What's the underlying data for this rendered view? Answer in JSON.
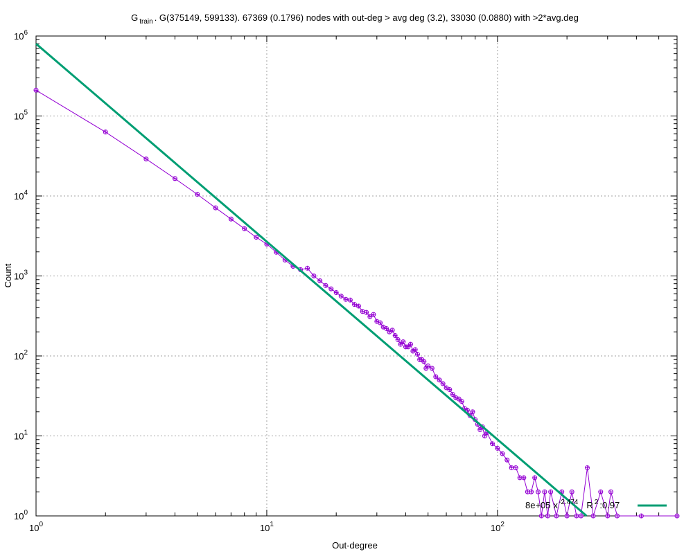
{
  "chart_data": {
    "type": "scatter",
    "title": {
      "prefix": "G",
      "subscript": "train",
      "rest": ". G(375149, 599133). 67369 (0.1796) nodes with out-deg > avg deg (3.2), 33030 (0.0880) with >2*avg.deg"
    },
    "xlabel": "Out-degree",
    "ylabel": "Count",
    "x_scale": "log",
    "y_scale": "log",
    "xlim": [
      1,
      600
    ],
    "ylim": [
      1,
      1000000
    ],
    "grid": true,
    "legend_position": "bottom-right",
    "x_ticks": [
      {
        "base": "10",
        "exp": "0",
        "value": 1
      },
      {
        "base": "10",
        "exp": "1",
        "value": 10
      },
      {
        "base": "10",
        "exp": "2",
        "value": 100
      }
    ],
    "y_ticks": [
      {
        "base": "10",
        "exp": "0",
        "value": 1
      },
      {
        "base": "10",
        "exp": "1",
        "value": 10
      },
      {
        "base": "10",
        "exp": "2",
        "value": 100
      },
      {
        "base": "10",
        "exp": "3",
        "value": 1000
      },
      {
        "base": "10",
        "exp": "4",
        "value": 10000
      },
      {
        "base": "10",
        "exp": "5",
        "value": 100000
      },
      {
        "base": "10",
        "exp": "6",
        "value": 1000000
      }
    ],
    "colors": {
      "data": "#9400d3",
      "fit": "#009e73",
      "grid": "#a0a0a0"
    },
    "series": [
      {
        "style": "line-points",
        "points": [
          [
            1,
            210000
          ],
          [
            2,
            63000
          ],
          [
            3,
            29000
          ],
          [
            4,
            16500
          ],
          [
            5,
            10500
          ],
          [
            6,
            7100
          ],
          [
            7,
            5150
          ],
          [
            8,
            3900
          ],
          [
            9,
            3050
          ],
          [
            10,
            2500
          ],
          [
            11,
            1980
          ],
          [
            12,
            1580
          ],
          [
            13,
            1320
          ],
          [
            14,
            1200
          ],
          [
            15,
            1250
          ],
          [
            16,
            1000
          ],
          [
            17,
            870
          ],
          [
            18,
            760
          ],
          [
            19,
            690
          ],
          [
            20,
            620
          ],
          [
            21,
            560
          ],
          [
            22,
            510
          ],
          [
            23,
            500
          ],
          [
            24,
            440
          ],
          [
            25,
            420
          ],
          [
            26,
            360
          ],
          [
            27,
            350
          ],
          [
            28,
            310
          ],
          [
            29,
            330
          ],
          [
            30,
            270
          ],
          [
            31,
            260
          ],
          [
            32,
            230
          ],
          [
            33,
            220
          ],
          [
            34,
            200
          ],
          [
            35,
            210
          ],
          [
            36,
            180
          ],
          [
            37,
            160
          ],
          [
            38,
            140
          ],
          [
            39,
            150
          ],
          [
            40,
            130
          ],
          [
            41,
            130
          ],
          [
            42,
            140
          ],
          [
            43,
            115
          ],
          [
            44,
            120
          ],
          [
            45,
            105
          ],
          [
            46,
            90
          ],
          [
            47,
            90
          ],
          [
            48,
            85
          ],
          [
            49,
            70
          ],
          [
            50,
            75
          ],
          [
            52,
            70
          ],
          [
            54,
            55
          ],
          [
            56,
            50
          ],
          [
            58,
            45
          ],
          [
            60,
            40
          ],
          [
            62,
            38
          ],
          [
            64,
            33
          ],
          [
            66,
            30
          ],
          [
            68,
            29
          ],
          [
            70,
            27
          ],
          [
            72,
            22
          ],
          [
            74,
            21
          ],
          [
            76,
            18
          ],
          [
            78,
            20
          ],
          [
            80,
            16
          ],
          [
            82,
            14
          ],
          [
            84,
            12
          ],
          [
            86,
            13
          ],
          [
            88,
            10
          ],
          [
            90,
            11
          ],
          [
            95,
            8
          ],
          [
            100,
            7
          ],
          [
            105,
            6
          ],
          [
            110,
            5
          ],
          [
            115,
            4
          ],
          [
            120,
            4
          ],
          [
            125,
            3
          ],
          [
            130,
            3
          ],
          [
            135,
            2
          ],
          [
            140,
            2
          ],
          [
            145,
            3
          ],
          [
            150,
            2
          ],
          [
            155,
            1
          ],
          [
            160,
            2
          ],
          [
            165,
            1
          ],
          [
            170,
            2
          ],
          [
            180,
            1
          ],
          [
            190,
            2
          ],
          [
            200,
            1
          ],
          [
            210,
            2
          ],
          [
            220,
            1
          ],
          [
            230,
            1
          ],
          [
            245,
            4
          ],
          [
            260,
            1
          ],
          [
            280,
            2
          ],
          [
            300,
            1
          ],
          [
            310,
            2
          ],
          [
            330,
            1
          ],
          [
            420,
            1
          ],
          [
            600,
            1
          ]
        ]
      },
      {
        "style": "fit-line",
        "label": {
          "coef": "8e+05",
          "xsym": "x",
          "exp": "-2.474",
          "r": "R",
          "r2exp": "2",
          "r2val": ":0.97"
        },
        "coefficient": 800000,
        "exponent": -2.474,
        "r_squared": 0.97
      }
    ]
  }
}
